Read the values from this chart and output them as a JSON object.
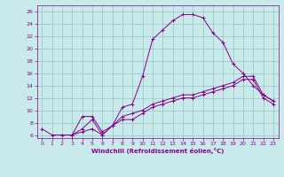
{
  "xlabel": "Windchill (Refroidissement éolien,°C)",
  "bg_color": "#c8eaea",
  "line_color": "#880088",
  "grid_color": "#a0c8c8",
  "xlim": [
    -0.5,
    23.5
  ],
  "ylim": [
    5.5,
    27
  ],
  "yticks": [
    6,
    8,
    10,
    12,
    14,
    16,
    18,
    20,
    22,
    24,
    26
  ],
  "xticks": [
    0,
    1,
    2,
    3,
    4,
    5,
    6,
    7,
    8,
    9,
    10,
    11,
    12,
    13,
    14,
    15,
    16,
    17,
    18,
    19,
    20,
    21,
    22,
    23
  ],
  "line1_x": [
    0,
    1,
    2,
    3,
    4,
    5,
    6,
    7,
    8,
    9,
    10,
    11,
    12,
    13,
    14,
    15,
    16,
    17,
    18,
    19,
    20,
    21,
    22,
    23
  ],
  "line1_y": [
    7.0,
    6.0,
    6.0,
    6.0,
    9.0,
    9.0,
    6.5,
    7.5,
    10.5,
    11.0,
    15.5,
    21.5,
    23.0,
    24.5,
    25.5,
    25.5,
    25.0,
    22.5,
    21.0,
    17.5,
    16.0,
    14.0,
    12.5,
    11.5
  ],
  "line2_x": [
    3,
    4,
    5,
    6,
    7,
    8,
    9,
    10,
    11,
    12,
    13,
    14,
    15,
    16,
    17,
    18,
    19,
    20,
    21,
    22,
    23
  ],
  "line2_y": [
    6.0,
    6.5,
    7.0,
    6.0,
    7.5,
    8.5,
    8.5,
    9.5,
    10.5,
    11.0,
    11.5,
    12.0,
    12.0,
    12.5,
    13.0,
    13.5,
    14.0,
    15.0,
    15.0,
    12.0,
    11.0
  ],
  "line3_x": [
    3,
    4,
    5,
    6,
    7,
    8,
    9,
    10,
    11,
    12,
    13,
    14,
    15,
    16,
    17,
    18,
    19,
    20,
    21,
    22,
    23
  ],
  "line3_y": [
    6.0,
    7.0,
    8.5,
    6.0,
    7.5,
    9.0,
    9.5,
    10.0,
    11.0,
    11.5,
    12.0,
    12.5,
    12.5,
    13.0,
    13.5,
    14.0,
    14.5,
    15.5,
    15.5,
    12.5,
    11.5
  ]
}
